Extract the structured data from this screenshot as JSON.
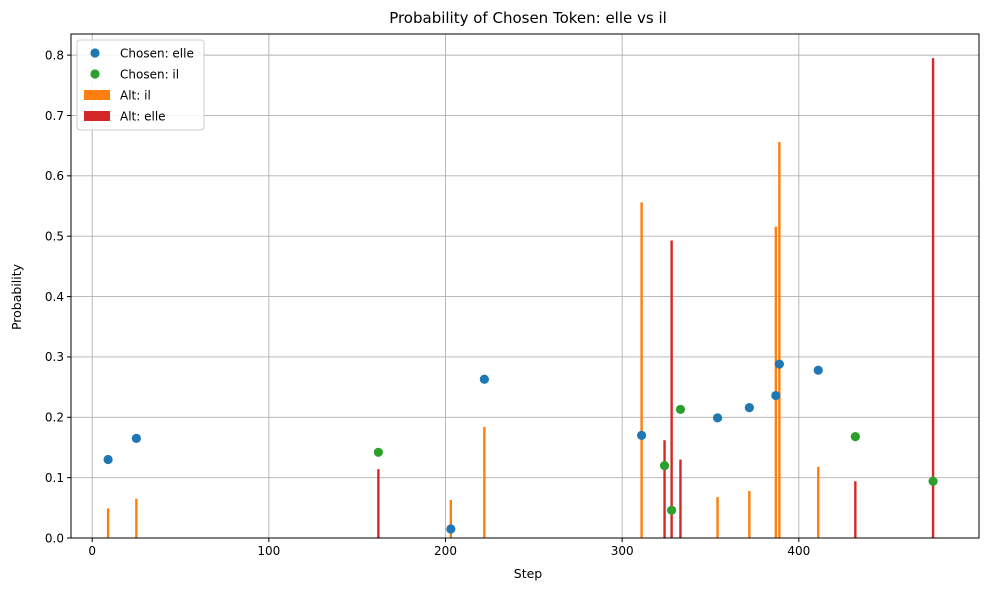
{
  "chart_data": {
    "type": "scatter",
    "title": "Probability of Chosen Token: elle vs il",
    "xlabel": "Step",
    "ylabel": "Probability",
    "xlim": [
      -12,
      502
    ],
    "ylim": [
      0,
      0.835
    ],
    "xticks": [
      0,
      100,
      200,
      300,
      400
    ],
    "yticks": [
      0.0,
      0.1,
      0.2,
      0.3,
      0.4,
      0.5,
      0.6,
      0.7,
      0.8
    ],
    "grid": true,
    "legend_position": "top-left",
    "series": [
      {
        "name": "Chosen: elle",
        "kind": "scatter",
        "color": "#1f77b4",
        "points": [
          {
            "x": 9,
            "y": 0.13
          },
          {
            "x": 25,
            "y": 0.165
          },
          {
            "x": 203,
            "y": 0.015
          },
          {
            "x": 222,
            "y": 0.263
          },
          {
            "x": 311,
            "y": 0.17
          },
          {
            "x": 354,
            "y": 0.199
          },
          {
            "x": 372,
            "y": 0.216
          },
          {
            "x": 387,
            "y": 0.236
          },
          {
            "x": 389,
            "y": 0.288
          },
          {
            "x": 411,
            "y": 0.278
          }
        ]
      },
      {
        "name": "Chosen: il",
        "kind": "scatter",
        "color": "#2ca02c",
        "points": [
          {
            "x": 162,
            "y": 0.142
          },
          {
            "x": 324,
            "y": 0.12
          },
          {
            "x": 328,
            "y": 0.046
          },
          {
            "x": 333,
            "y": 0.213
          },
          {
            "x": 432,
            "y": 0.168
          },
          {
            "x": 476,
            "y": 0.094
          }
        ]
      },
      {
        "name": "Alt: il",
        "kind": "bar",
        "color": "#ff7f0e",
        "points": [
          {
            "x": 9,
            "y": 0.049
          },
          {
            "x": 25,
            "y": 0.065
          },
          {
            "x": 203,
            "y": 0.063
          },
          {
            "x": 222,
            "y": 0.184
          },
          {
            "x": 311,
            "y": 0.556
          },
          {
            "x": 354,
            "y": 0.068
          },
          {
            "x": 372,
            "y": 0.078
          },
          {
            "x": 387,
            "y": 0.516
          },
          {
            "x": 389,
            "y": 0.656
          },
          {
            "x": 411,
            "y": 0.118
          }
        ]
      },
      {
        "name": "Alt: elle",
        "kind": "bar",
        "color": "#d62728",
        "points": [
          {
            "x": 162,
            "y": 0.114
          },
          {
            "x": 324,
            "y": 0.162
          },
          {
            "x": 328,
            "y": 0.493
          },
          {
            "x": 333,
            "y": 0.13
          },
          {
            "x": 432,
            "y": 0.094
          },
          {
            "x": 476,
            "y": 0.795
          }
        ]
      }
    ]
  }
}
